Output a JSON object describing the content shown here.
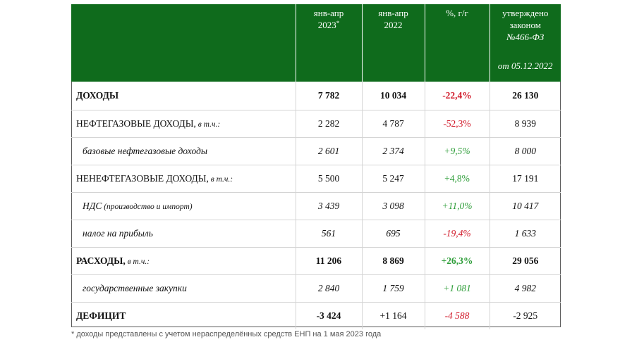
{
  "header": {
    "col1": {
      "text": "янв-апр",
      "year": "2023",
      "mark": "*"
    },
    "col2": {
      "text": "янв-апр",
      "year": "2022"
    },
    "col3": {
      "text": "%, г/г"
    },
    "col4": {
      "line1": "утверждено",
      "line2": "законом",
      "line3": "№466-ФЗ",
      "line4": "от 05.12.2022"
    }
  },
  "rows": [
    {
      "label": "ДОХОДЫ",
      "qualifier": "",
      "v2023": "7 782",
      "v2022": "10 034",
      "yoy": "-22,4%",
      "law": "26 130"
    },
    {
      "label": "НЕФТЕГАЗОВЫЕ ДОХОДЫ,",
      "qualifier": " в т.ч.:",
      "v2023": "2 282",
      "v2022": "4 787",
      "yoy": "-52,3%",
      "law": "8 939"
    },
    {
      "label": "базовые нефтегазовые доходы",
      "qualifier": "",
      "v2023": "2 601",
      "v2022": "2 374",
      "yoy": "+9,5%",
      "law": "8 000"
    },
    {
      "label": "НЕНЕФТЕГАЗОВЫЕ ДОХОДЫ,",
      "qualifier": " в т.ч.:",
      "v2023": "5 500",
      "v2022": "5 247",
      "yoy": "+4,8%",
      "law": "17 191"
    },
    {
      "label": "НДС",
      "qualifier": " (производство и импорт)",
      "v2023": "3 439",
      "v2022": "3 098",
      "yoy": "+11,0%",
      "law": "10 417"
    },
    {
      "label": "налог на прибыль",
      "qualifier": "",
      "v2023": "561",
      "v2022": "695",
      "yoy": "-19,4%",
      "law": "1 633"
    },
    {
      "label": "РАСХОДЫ,",
      "qualifier": " в т.ч.:",
      "v2023": "11 206",
      "v2022": "8 869",
      "yoy": "+26,3%",
      "law": "29 056"
    },
    {
      "label": "государственные закупки",
      "qualifier": "",
      "v2023": "2 840",
      "v2022": "1 759",
      "yoy": "+1 081",
      "law": "4 982"
    },
    {
      "label": "ДЕФИЦИТ",
      "qualifier": "",
      "v2023": "-3 424",
      "v2022": "+1 164",
      "yoy": "-4 588",
      "law": "-2 925"
    }
  ],
  "colors": {
    "header_bg": "#0f6b1c",
    "negative": "#d11a2a",
    "positive": "#2f9e3a"
  },
  "footnote": "* доходы представлены с учетом нераспределённых средств ЕНП на 1 мая 2023 года"
}
